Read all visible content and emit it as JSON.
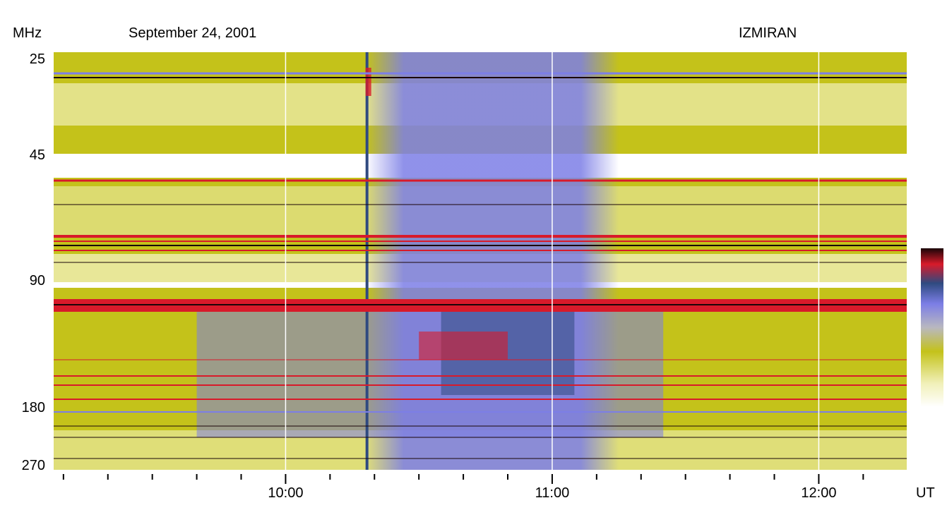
{
  "header": {
    "frequency_unit": "MHz",
    "date": "September 24, 2001",
    "station": "IZMIRAN",
    "time_unit": "UT"
  },
  "chart_data": {
    "type": "heatmap",
    "title": "September 24, 2001",
    "observatory": "IZMIRAN",
    "xlabel": "UT",
    "ylabel": "MHz",
    "x_ticks": [
      "10:00",
      "11:00",
      "12:00"
    ],
    "x_tick_hours": [
      10,
      11,
      12
    ],
    "xlim_hours": [
      9.13,
      12.33
    ],
    "minor_tick_minutes": 10,
    "y_ticks": [
      "25",
      "45",
      "90",
      "180",
      "270"
    ],
    "y_tick_values": [
      25,
      45,
      90,
      180,
      270
    ],
    "ylim_mhz": [
      25,
      270
    ],
    "colorscale": [
      "#ffffff",
      "#f1f0b8",
      "#c4c21a",
      "#b9b8bf",
      "#7c7ee6",
      "#2f4a80",
      "#d81a2a",
      "#1a0508"
    ],
    "features": [
      {
        "name": "burst onset",
        "time": "10:18",
        "freq_range_mhz": [
          25,
          270
        ],
        "description_type": "broadband emission"
      },
      {
        "name": "continuum",
        "time_range": [
          "10:18",
          "11:15"
        ],
        "freq_range_mhz": [
          45,
          270
        ]
      },
      {
        "name": "interference band",
        "freq_range_mhz": [
          95,
          105
        ]
      },
      {
        "name": "data gap",
        "freq_range_mhz": [
          45,
          50
        ]
      }
    ]
  }
}
